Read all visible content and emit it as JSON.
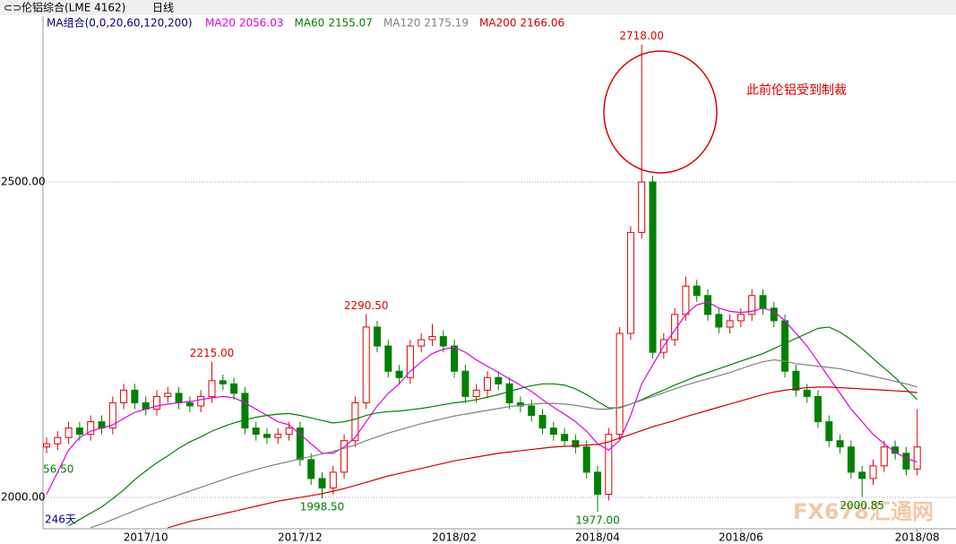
{
  "header": {
    "title": "伦铝综合(LME 4162)",
    "period": "日线"
  },
  "chart_data": {
    "type": "candlestick",
    "indicator": "MA组合(0,0,20,60,120,200)",
    "categories": [
      null,
      null,
      null,
      null,
      null,
      null,
      null,
      null,
      null,
      "2017/10",
      null,
      null,
      null,
      null,
      null,
      null,
      null,
      null,
      null,
      null,
      null,
      null,
      null,
      "2017/12",
      null,
      null,
      null,
      null,
      null,
      null,
      null,
      null,
      null,
      null,
      null,
      null,
      null,
      "2018/02",
      null,
      null,
      null,
      null,
      null,
      null,
      null,
      null,
      null,
      null,
      null,
      null,
      "2018/04",
      null,
      null,
      null,
      null,
      null,
      null,
      null,
      null,
      null,
      null,
      null,
      null,
      "2018/06",
      null,
      null,
      null,
      null,
      null,
      null,
      null,
      null,
      null,
      null,
      null,
      null,
      null,
      null,
      null,
      "2018/08"
    ],
    "open": [
      2080,
      2085,
      2095,
      2110,
      2100,
      2120,
      2110,
      2150,
      2170,
      2150,
      2140,
      2160,
      2165,
      2150,
      2145,
      2160,
      2185,
      2180,
      2165,
      2110,
      2100,
      2095,
      2100,
      2110,
      2060,
      2030,
      2015,
      2040,
      2090,
      2150,
      2270,
      2240,
      2200,
      2190,
      2240,
      2250,
      2255,
      2240,
      2200,
      2160,
      2170,
      2190,
      2180,
      2150,
      2145,
      2130,
      2110,
      2100,
      2090,
      2080,
      2040,
      2005,
      2100,
      2260,
      2420,
      2500,
      2230,
      2250,
      2290,
      2335,
      2320,
      2290,
      2270,
      2280,
      2290,
      2320,
      2300,
      2280,
      2200,
      2170,
      2160,
      2120,
      2090,
      2080,
      2040,
      2030,
      2050,
      2080,
      2070,
      2045
    ],
    "high": [
      2095,
      2105,
      2120,
      2120,
      2130,
      2130,
      2160,
      2180,
      2180,
      2160,
      2170,
      2175,
      2175,
      2160,
      2170,
      2215,
      2195,
      2190,
      2175,
      2120,
      2110,
      2110,
      2120,
      2120,
      2070,
      2040,
      2050,
      2100,
      2160,
      2290.5,
      2280,
      2250,
      2210,
      2250,
      2260,
      2275,
      2265,
      2250,
      2210,
      2180,
      2200,
      2200,
      2190,
      2160,
      2155,
      2140,
      2120,
      2110,
      2100,
      2090,
      2050,
      2110,
      2270,
      2430,
      2718,
      2510,
      2260,
      2300,
      2350,
      2345,
      2330,
      2300,
      2290,
      2300,
      2330,
      2330,
      2310,
      2290,
      2210,
      2180,
      2170,
      2130,
      2100,
      2090,
      2050,
      2060,
      2090,
      2090,
      2080,
      2140
    ],
    "low": [
      2070,
      2075,
      2085,
      2090,
      2090,
      2100,
      2100,
      2140,
      2140,
      2130,
      2130,
      2150,
      2140,
      2135,
      2135,
      2150,
      2170,
      2155,
      2100,
      2090,
      2085,
      2085,
      2090,
      2050,
      2020,
      1998.5,
      2005,
      2030,
      2080,
      2140,
      2230,
      2190,
      2180,
      2180,
      2230,
      2240,
      2230,
      2190,
      2150,
      2150,
      2160,
      2170,
      2140,
      2135,
      2120,
      2100,
      2090,
      2080,
      2070,
      2030,
      1977,
      1995,
      2090,
      2250,
      2410,
      2220,
      2220,
      2240,
      2280,
      2310,
      2280,
      2260,
      2260,
      2270,
      2280,
      2290,
      2270,
      2190,
      2160,
      2150,
      2110,
      2080,
      2070,
      2030,
      2000.85,
      2020,
      2040,
      2060,
      2035,
      2035
    ],
    "close": [
      2085,
      2095,
      2110,
      2100,
      2120,
      2110,
      2150,
      2170,
      2150,
      2140,
      2160,
      2165,
      2150,
      2145,
      2160,
      2185,
      2180,
      2165,
      2110,
      2100,
      2095,
      2100,
      2110,
      2060,
      2030,
      2015,
      2040,
      2090,
      2150,
      2270,
      2240,
      2200,
      2190,
      2240,
      2250,
      2255,
      2240,
      2200,
      2160,
      2170,
      2190,
      2180,
      2150,
      2145,
      2130,
      2110,
      2100,
      2090,
      2080,
      2040,
      2005,
      2100,
      2260,
      2420,
      2500,
      2230,
      2250,
      2290,
      2335,
      2320,
      2290,
      2270,
      2280,
      2290,
      2320,
      2300,
      2280,
      2200,
      2170,
      2160,
      2120,
      2090,
      2080,
      2040,
      2030,
      2050,
      2080,
      2070,
      2045,
      2080
    ],
    "up_color": "#e00000",
    "down_color": "#008000",
    "series": [
      {
        "name": "MA20",
        "color": "#e000e0",
        "last_label": "2056.03",
        "values": [
          2005,
          2040,
          2075,
          2095,
          2105,
          2110,
          2115,
          2125,
          2135,
          2140,
          2145,
          2148,
          2150,
          2152,
          2155,
          2158,
          2160,
          2158,
          2150,
          2140,
          2130,
          2120,
          2115,
          2100,
          2085,
          2070,
          2070,
          2080,
          2095,
          2120,
          2145,
          2165,
          2180,
          2200,
          2215,
          2228,
          2235,
          2238,
          2230,
          2218,
          2208,
          2198,
          2188,
          2178,
          2168,
          2155,
          2143,
          2132,
          2120,
          2105,
          2085,
          2075,
          2090,
          2130,
          2180,
          2210,
          2240,
          2265,
          2290,
          2305,
          2310,
          2300,
          2295,
          2293,
          2295,
          2300,
          2295,
          2280,
          2260,
          2240,
          2215,
          2190,
          2165,
          2140,
          2120,
          2100,
          2085,
          2072,
          2062,
          2056.03
        ]
      },
      {
        "name": "MA60",
        "color": "#008000",
        "last_label": "2155.07",
        "values": [
          null,
          null,
          1955,
          1965,
          1975,
          1985,
          1998,
          2012,
          2028,
          2042,
          2055,
          2066,
          2078,
          2088,
          2096,
          2105,
          2112,
          2118,
          2123,
          2127,
          2130,
          2132,
          2133,
          2130,
          2126,
          2122,
          2118,
          2120,
          2124,
          2130,
          2134,
          2136,
          2137,
          2139,
          2141,
          2144,
          2147,
          2150,
          2152,
          2155,
          2159,
          2163,
          2168,
          2173,
          2177,
          2180,
          2180,
          2178,
          2172,
          2163,
          2152,
          2142,
          2142,
          2148,
          2155,
          2163,
          2170,
          2178,
          2185,
          2192,
          2198,
          2204,
          2210,
          2216,
          2222,
          2228,
          2236,
          2244,
          2252,
          2260,
          2268,
          2270,
          2262,
          2250,
          2236,
          2220,
          2205,
          2190,
          2172,
          2155.07
        ]
      },
      {
        "name": "MA120",
        "color": "#808080",
        "last_label": "2175.19",
        "values": [
          null,
          null,
          null,
          null,
          1952,
          1958,
          1965,
          1972,
          1979,
          1986,
          1992,
          1998,
          2004,
          2010,
          2016,
          2022,
          2028,
          2034,
          2039,
          2044,
          2049,
          2053,
          2057,
          2061,
          2065,
          2069,
          2073,
          2078,
          2083,
          2090,
          2096,
          2102,
          2107,
          2112,
          2117,
          2121,
          2125,
          2129,
          2132,
          2135,
          2138,
          2141,
          2144,
          2146,
          2148,
          2149,
          2149,
          2148,
          2146,
          2143,
          2140,
          2140,
          2143,
          2148,
          2154,
          2160,
          2166,
          2172,
          2178,
          2183,
          2188,
          2193,
          2198,
          2204,
          2210,
          2215,
          2218,
          2216,
          2212,
          2210,
          2208,
          2206,
          2204,
          2200,
          2196,
          2192,
          2188,
          2184,
          2180,
          2175.19
        ]
      },
      {
        "name": "MA200",
        "color": "#cc0000",
        "last_label": "2166.06",
        "values": [
          null,
          null,
          null,
          null,
          null,
          null,
          null,
          null,
          null,
          null,
          null,
          1952,
          1957,
          1962,
          1966,
          1970,
          1974,
          1978,
          1982,
          1986,
          1990,
          1994,
          1997,
          2000,
          2003,
          2006,
          2010,
          2014,
          2019,
          2024,
          2029,
          2034,
          2038,
          2042,
          2046,
          2050,
          2054,
          2058,
          2061,
          2064,
          2067,
          2070,
          2072,
          2074,
          2076,
          2078,
          2080,
          2081,
          2082,
          2083,
          2084,
          2088,
          2094,
          2100,
          2106,
          2112,
          2117,
          2122,
          2128,
          2133,
          2138,
          2143,
          2148,
          2153,
          2158,
          2163,
          2167,
          2170,
          2172,
          2174,
          2175,
          2175,
          2174,
          2173,
          2172,
          2171,
          2170,
          2169,
          2168,
          2166.06
        ]
      }
    ],
    "ylim": [
      1947.5,
      2760
    ],
    "yticks": [
      {
        "value": 2000,
        "label": "2000.00"
      },
      {
        "value": 2500,
        "label": "2500.00"
      }
    ],
    "grid": true,
    "high_labels": [
      {
        "value": 2718,
        "label": "2718.00"
      },
      {
        "value": 2290.5,
        "label": "2290.50"
      },
      {
        "value": 2215,
        "label": "2215.00"
      }
    ],
    "low_labels": [
      {
        "value": 1998.5,
        "label": "1998.50"
      },
      {
        "value": 1977,
        "label": "1977.00"
      },
      {
        "value": 2000.85,
        "label": "2000.85"
      }
    ],
    "annotation": "此前伦铝受到制裁",
    "edge_label": "56.50",
    "period_count": "246天"
  },
  "watermark": "FX678汇通网"
}
